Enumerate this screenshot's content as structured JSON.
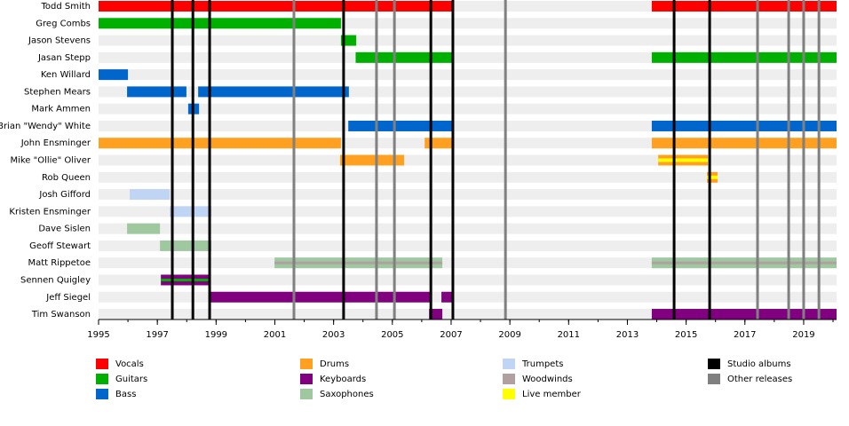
{
  "chart_data": {
    "type": "timeline",
    "xlim": [
      1995,
      2020.12
    ],
    "xticks": [
      1995,
      1997,
      1999,
      2001,
      2003,
      2005,
      2007,
      2009,
      2011,
      2013,
      2015,
      2017,
      2019
    ],
    "series": [
      {
        "name": "Vocals",
        "color": "#ff0000"
      },
      {
        "name": "Guitars",
        "color": "#00b000"
      },
      {
        "name": "Bass",
        "color": "#0066cc"
      },
      {
        "name": "Drums",
        "color": "#ffa020"
      },
      {
        "name": "Keyboards",
        "color": "#800080"
      },
      {
        "name": "Saxophones",
        "color": "#a0c8a0"
      },
      {
        "name": "Trumpets",
        "color": "#c0d4f4"
      },
      {
        "name": "Woodwinds",
        "color": "#b0a0a0"
      },
      {
        "name": "Live member",
        "color": "#ffff00"
      }
    ],
    "markers": [
      {
        "name": "Studio albums",
        "color": "#000000",
        "values": [
          1997.51,
          1998.21,
          1998.78,
          2003.34,
          2006.31,
          2007.06,
          2014.59,
          2015.8
        ]
      },
      {
        "name": "Other releases",
        "color": "#808080",
        "values": [
          2001.65,
          2004.46,
          2005.07,
          2008.85,
          2017.43,
          2018.49,
          2019.0,
          2019.52
        ]
      }
    ],
    "members": [
      {
        "name": "Todd Smith",
        "bars": [
          {
            "role": "Vocals",
            "start": 1995,
            "end": 2007.06
          },
          {
            "role": "Vocals",
            "start": 2013.83,
            "end": 2020.12
          }
        ]
      },
      {
        "name": "Greg Combs",
        "bars": [
          {
            "role": "Guitars",
            "start": 1995,
            "end": 2003.25
          }
        ]
      },
      {
        "name": "Jason Stevens",
        "bars": [
          {
            "role": "Guitars",
            "start": 2003.25,
            "end": 2003.77
          }
        ]
      },
      {
        "name": "Jasan Stepp",
        "bars": [
          {
            "role": "Guitars",
            "start": 2003.75,
            "end": 2007.06
          },
          {
            "role": "Guitars",
            "start": 2013.83,
            "end": 2020.12
          }
        ]
      },
      {
        "name": "Ken Willard",
        "bars": [
          {
            "role": "Bass",
            "start": 1995,
            "end": 1996.0
          }
        ]
      },
      {
        "name": "Stephen Mears",
        "bars": [
          {
            "role": "Bass",
            "start": 1995.97,
            "end": 1997.99
          },
          {
            "role": "Bass",
            "start": 1998.39,
            "end": 2003.52
          }
        ]
      },
      {
        "name": "Mark Ammen",
        "bars": [
          {
            "role": "Bass",
            "start": 1998.05,
            "end": 1998.42
          }
        ]
      },
      {
        "name": "Brian \"Wendy\" White",
        "bars": [
          {
            "role": "Bass",
            "start": 2003.5,
            "end": 2007.06
          },
          {
            "role": "Bass",
            "start": 2013.83,
            "end": 2020.12
          }
        ]
      },
      {
        "name": "John Ensminger",
        "bars": [
          {
            "role": "Drums",
            "start": 1995,
            "end": 2003.25
          },
          {
            "role": "Drums",
            "start": 2006.1,
            "end": 2007.06
          },
          {
            "role": "Drums",
            "start": 2013.83,
            "end": 2020.12
          }
        ]
      },
      {
        "name": "Mike \"Ollie\" Oliver",
        "bars": [
          {
            "role": "Drums",
            "start": 2003.22,
            "end": 2005.4
          },
          {
            "role": "Drums",
            "start": 2014.05,
            "end": 2015.74,
            "stripe": "Live member"
          }
        ]
      },
      {
        "name": "Rob Queen",
        "bars": [
          {
            "role": "Drums",
            "start": 2015.71,
            "end": 2016.07,
            "stripe": "Live member"
          }
        ]
      },
      {
        "name": "Josh Gifford",
        "bars": [
          {
            "role": "Trumpets",
            "start": 1996.06,
            "end": 1997.42
          }
        ]
      },
      {
        "name": "Kristen Ensminger",
        "bars": [
          {
            "role": "Trumpets",
            "start": 1997.42,
            "end": 1998.84
          }
        ]
      },
      {
        "name": "Dave Sislen",
        "bars": [
          {
            "role": "Saxophones",
            "start": 1995.97,
            "end": 1997.09
          }
        ]
      },
      {
        "name": "Geoff Stewart",
        "bars": [
          {
            "role": "Saxophones",
            "start": 1997.09,
            "end": 1998.84
          }
        ]
      },
      {
        "name": "Matt Rippetoe",
        "bars": [
          {
            "role": "Saxophones",
            "start": 2000.99,
            "end": 2006.7,
            "stripe": "Woodwinds"
          },
          {
            "role": "Saxophones",
            "start": 2013.83,
            "end": 2020.12,
            "stripe": "Woodwinds"
          }
        ]
      },
      {
        "name": "Sennen Quigley",
        "bars": [
          {
            "role": "Keyboards",
            "start": 1997.12,
            "end": 1998.78,
            "stripe": "Guitars"
          }
        ]
      },
      {
        "name": "Jeff Siegel",
        "bars": [
          {
            "role": "Keyboards",
            "start": 1998.78,
            "end": 2006.3
          },
          {
            "role": "Keyboards",
            "start": 2006.67,
            "end": 2007.06
          }
        ]
      },
      {
        "name": "Tim Swanson",
        "bars": [
          {
            "role": "Keyboards",
            "start": 2006.25,
            "end": 2006.7
          },
          {
            "role": "Keyboards",
            "start": 2013.83,
            "end": 2020.12
          }
        ]
      }
    ]
  }
}
